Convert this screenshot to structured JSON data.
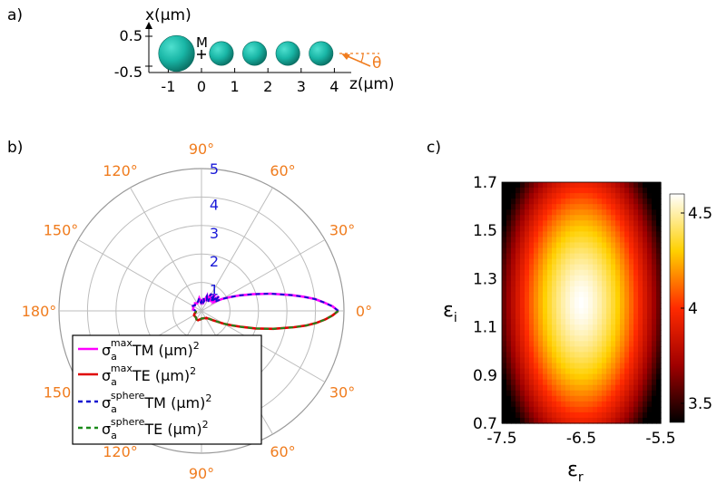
{
  "colors": {
    "tm": "#ff00ff",
    "te": "#e00000",
    "sphere_tm": "#1010d0",
    "sphere_te": "#1a8a1a",
    "angle_label": "#f07c1e",
    "radius_label": "#1a1ad8",
    "sphere_fill": "#19b6a6",
    "heat_low": "#000000",
    "heat_mid": "#ff2a00",
    "heat_high": "#ffffff"
  },
  "panel_a": {
    "label": "a)",
    "x_axis_label": "x(μm)",
    "z_axis_label": "z(μm)",
    "x_ticks": [
      "0.5",
      "-0.5"
    ],
    "z_ticks": [
      "-1",
      "0",
      "1",
      "2",
      "3",
      "4"
    ],
    "marker_label": "M",
    "angle_label": "θ",
    "spheres": [
      {
        "z": -0.75,
        "diameter": 1.2
      },
      {
        "z": 0.6,
        "diameter": 0.8
      },
      {
        "z": 1.6,
        "diameter": 0.8
      },
      {
        "z": 2.6,
        "diameter": 0.8
      },
      {
        "z": 3.6,
        "diameter": 0.8
      }
    ]
  },
  "chart_data": [
    {
      "type": "polar",
      "panel_label": "b)",
      "angle_ticks": [
        "90°",
        "60°",
        "30°",
        "0°",
        "30°",
        "60°",
        "90°",
        "120°",
        "150°",
        "180°",
        "150°",
        "120°"
      ],
      "radial_ticks": [
        "1",
        "2",
        "3",
        "4",
        "5"
      ],
      "radial_range": [
        0,
        5
      ],
      "series": [
        {
          "name": "σₐᵐᵃˣ TM (μm)²",
          "legend_main": "σ",
          "legend_sub": "a",
          "legend_sup": "max",
          "legend_rest": "TM (μm)",
          "legend_exp": "2",
          "style": "solid",
          "color_key": "tm",
          "angles_deg": [
            0,
            2,
            4,
            6,
            8,
            10,
            14,
            18,
            22,
            26,
            30,
            35,
            40,
            45,
            50,
            55,
            60,
            65,
            70,
            75,
            80,
            85,
            90,
            95,
            100,
            110,
            120,
            130,
            140,
            150,
            160,
            170,
            180
          ],
          "r": [
            4.8,
            4.6,
            4.3,
            4.0,
            3.6,
            3.2,
            2.5,
            1.9,
            1.45,
            1.1,
            0.85,
            0.55,
            0.8,
            0.45,
            0.75,
            0.4,
            0.7,
            0.45,
            0.55,
            0.35,
            0.45,
            0.3,
            0.35,
            0.3,
            0.45,
            0.35,
            0.3,
            0.35,
            0.3,
            0.35,
            0.3,
            0.3,
            0.2
          ]
        },
        {
          "name": "σₐᵐᵃˣ TE (μm)²",
          "legend_main": "σ",
          "legend_sub": "a",
          "legend_sup": "max",
          "legend_rest": "TE (μm)",
          "legend_exp": "2",
          "style": "solid",
          "color_key": "te",
          "angles_deg": [
            0,
            2,
            4,
            6,
            8,
            10,
            14,
            18,
            22,
            26,
            30,
            35,
            40,
            45,
            50,
            55,
            60,
            65,
            70,
            75,
            80,
            85,
            90,
            95,
            100,
            110,
            120,
            130,
            140,
            150,
            160,
            170,
            180
          ],
          "r": [
            4.8,
            4.6,
            4.35,
            4.05,
            3.7,
            3.3,
            2.6,
            2.0,
            1.5,
            1.15,
            0.9,
            0.65,
            0.5,
            0.4,
            0.35,
            0.3,
            0.3,
            0.28,
            0.27,
            0.27,
            0.27,
            0.27,
            0.27,
            0.3,
            0.3,
            0.35,
            0.35,
            0.3,
            0.3,
            0.3,
            0.25,
            0.2,
            0.2
          ]
        },
        {
          "name": "σₐˢᵖʰᵉʳᵉ TM (μm)²",
          "legend_main": "σ",
          "legend_sub": "a",
          "legend_sup": "sphere",
          "legend_rest": "TM (μm)",
          "legend_exp": "2",
          "style": "dashed",
          "color_key": "sphere_tm",
          "angles_deg": [
            0,
            2,
            4,
            6,
            8,
            10,
            14,
            18,
            22,
            26,
            30,
            35,
            40,
            45,
            50,
            55,
            60,
            65,
            70,
            75,
            80,
            85,
            90,
            95,
            100,
            110,
            120,
            130,
            140,
            150,
            160,
            170,
            180
          ],
          "r": [
            4.8,
            4.6,
            4.3,
            4.0,
            3.6,
            3.2,
            2.5,
            1.9,
            1.45,
            1.1,
            0.85,
            0.55,
            0.8,
            0.45,
            0.75,
            0.4,
            0.7,
            0.45,
            0.55,
            0.35,
            0.45,
            0.3,
            0.35,
            0.3,
            0.45,
            0.35,
            0.3,
            0.35,
            0.3,
            0.35,
            0.3,
            0.3,
            0.2
          ]
        },
        {
          "name": "σₐˢᵖʰᵉʳᵉ TE (μm)²",
          "legend_main": "σ",
          "legend_sub": "a",
          "legend_sup": "sphere",
          "legend_rest": "TE (μm)",
          "legend_exp": "2",
          "style": "dashed",
          "color_key": "sphere_te",
          "angles_deg": [
            0,
            2,
            4,
            6,
            8,
            10,
            14,
            18,
            22,
            26,
            30,
            35,
            40,
            45,
            50,
            55,
            60,
            65,
            70,
            75,
            80,
            85,
            90,
            95,
            100,
            110,
            120,
            130,
            140,
            150,
            160,
            170,
            180
          ],
          "r": [
            4.8,
            4.6,
            4.35,
            4.05,
            3.7,
            3.3,
            2.6,
            2.0,
            1.5,
            1.15,
            0.9,
            0.65,
            0.5,
            0.4,
            0.35,
            0.3,
            0.3,
            0.28,
            0.27,
            0.27,
            0.27,
            0.27,
            0.27,
            0.3,
            0.3,
            0.35,
            0.35,
            0.3,
            0.3,
            0.3,
            0.25,
            0.2,
            0.2
          ]
        }
      ]
    },
    {
      "type": "heatmap",
      "panel_label": "c)",
      "xlabel": "ε",
      "xlabel_sub": "r",
      "ylabel": "ε",
      "ylabel_sub": "i",
      "xlim": [
        -7.5,
        -5.5
      ],
      "ylim": [
        0.7,
        1.7
      ],
      "x_ticks": [
        "-7.5",
        "-6.5",
        "-5.5"
      ],
      "y_ticks": [
        "0.7",
        "0.9",
        "1.1",
        "1.3",
        "1.5",
        "1.7"
      ],
      "colorbar_range": [
        3.4,
        4.6
      ],
      "colorbar_ticks": [
        "3.5",
        "4",
        "4.5"
      ],
      "peak": {
        "x": -6.5,
        "y": 1.2,
        "value": 4.6
      },
      "corner_min": 3.4
    }
  ]
}
